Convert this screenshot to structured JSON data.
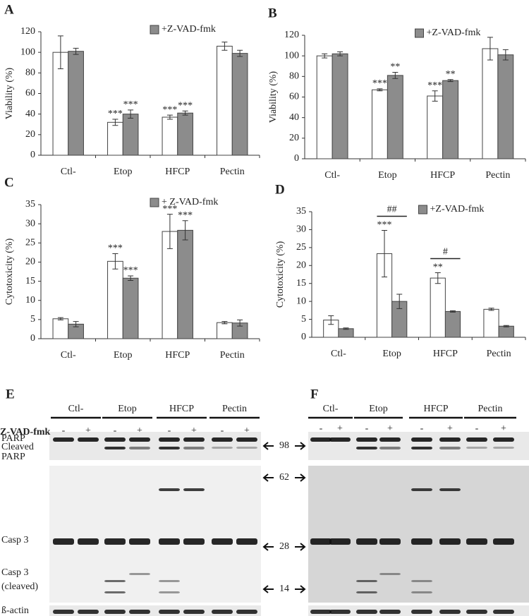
{
  "chart_data": [
    {
      "type": "bar",
      "panel": "A",
      "ylabel": "Viability (%)",
      "categories": [
        "Ctl-",
        "Etop",
        "HFCP",
        "Pectin"
      ],
      "ylim": [
        0,
        120
      ],
      "yticks": [
        0,
        20,
        40,
        60,
        80,
        100,
        120
      ],
      "series": [
        {
          "color": "#ffffff",
          "values": [
            100,
            32,
            37,
            106
          ],
          "errors": [
            16,
            3,
            2,
            4
          ],
          "stars": [
            null,
            "***",
            "***",
            null
          ]
        },
        {
          "name": "+Z-VAD-fmk",
          "color": "#8c8c8c",
          "values": [
            101,
            40,
            41,
            99
          ],
          "errors": [
            3,
            4,
            2,
            3
          ],
          "stars": [
            null,
            "***",
            "***",
            null
          ]
        }
      ]
    },
    {
      "type": "bar",
      "panel": "B",
      "ylabel": "Viability (%)",
      "categories": [
        "Ctl-",
        "Etop",
        "HFCP",
        "Pectin"
      ],
      "ylim": [
        0,
        120
      ],
      "yticks": [
        0,
        20,
        40,
        60,
        80,
        100,
        120
      ],
      "series": [
        {
          "color": "#ffffff",
          "values": [
            100,
            67,
            61,
            107
          ],
          "errors": [
            2,
            1,
            5,
            11
          ],
          "stars": [
            null,
            "***",
            "***",
            null
          ]
        },
        {
          "name": "+Z-VAD-fmk",
          "color": "#8c8c8c",
          "values": [
            102,
            81,
            76,
            101
          ],
          "errors": [
            2,
            3,
            1,
            5
          ],
          "stars": [
            null,
            "**",
            "**",
            null
          ]
        }
      ]
    },
    {
      "type": "bar",
      "panel": "C",
      "ylabel": "Cytotoxicity (%)",
      "categories": [
        "Ctl-",
        "Etop",
        "HFCP",
        "Pectin"
      ],
      "ylim": [
        0,
        35
      ],
      "yticks": [
        0,
        5,
        10,
        15,
        20,
        25,
        30,
        35
      ],
      "series": [
        {
          "color": "#ffffff",
          "values": [
            5.2,
            20.2,
            28,
            4.2
          ],
          "errors": [
            0.3,
            2,
            4.5,
            0.3
          ],
          "stars": [
            null,
            "***",
            "***",
            null
          ]
        },
        {
          "name": "+ Z-VAD-fmk",
          "color": "#8c8c8c",
          "values": [
            3.8,
            15.8,
            28.3,
            4.1
          ],
          "errors": [
            0.7,
            0.6,
            2.5,
            0.8
          ],
          "stars": [
            null,
            "***",
            "***",
            null
          ]
        }
      ]
    },
    {
      "type": "bar",
      "panel": "D",
      "ylabel": "Cytotoxicity (%)",
      "categories": [
        "Ctl-",
        "Etop",
        "HFCP",
        "Pectin"
      ],
      "ylim": [
        0,
        35
      ],
      "yticks": [
        0,
        5,
        10,
        15,
        20,
        25,
        30,
        35
      ],
      "brackets": [
        null,
        "##",
        "#",
        null
      ],
      "series": [
        {
          "color": "#ffffff",
          "values": [
            4.8,
            23.3,
            16.5,
            7.8
          ],
          "errors": [
            1.2,
            6.5,
            1.5,
            0.3
          ],
          "stars": [
            null,
            "***",
            "**",
            null
          ]
        },
        {
          "name": "+Z-VAD-fmk",
          "color": "#8c8c8c",
          "values": [
            2.4,
            10,
            7.2,
            3.1
          ],
          "errors": [
            0.2,
            2,
            0.2,
            0.2
          ],
          "stars": [
            null,
            null,
            null,
            null
          ]
        }
      ]
    }
  ],
  "blots": [
    {
      "panel": "E",
      "groups": [
        "Ctl-",
        "Etop",
        "HFCP",
        "Pectin"
      ],
      "treatment": "Z-VAD-fmk",
      "signs": [
        "-",
        "+"
      ],
      "rows": [
        [
          "PARP"
        ],
        [
          "Cleaved",
          "PARP"
        ],
        [
          "Casp 3"
        ],
        [
          "Casp 3",
          "(cleaved)"
        ],
        [
          "ß-actin"
        ]
      ]
    },
    {
      "panel": "F",
      "groups": [
        "Ctl-",
        "Etop",
        "HFCP",
        "Pectin"
      ],
      "signs": [
        "-",
        "+"
      ]
    }
  ],
  "markers": [
    "98",
    "62",
    "28",
    "14"
  ]
}
